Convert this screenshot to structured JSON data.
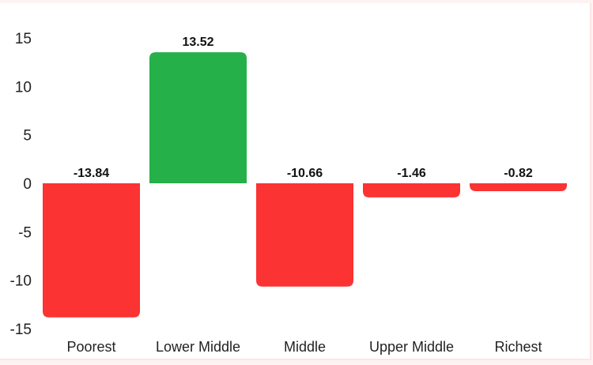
{
  "chart_data": {
    "type": "bar",
    "categories": [
      "Poorest",
      "Lower Middle",
      "Middle",
      "Upper Middle",
      "Richest"
    ],
    "values": [
      -13.84,
      13.52,
      -10.66,
      -1.46,
      -0.82
    ],
    "value_labels": [
      "-13.84",
      "13.52",
      "-10.66",
      "-1.46",
      "-0.82"
    ],
    "y_ticks": [
      "15",
      "10",
      "5",
      "0",
      "-5",
      "-10",
      "-15"
    ],
    "ylim": [
      -15,
      15
    ],
    "grid": false,
    "legend": "none",
    "colors": {
      "positive": "#25b04a",
      "negative": "#fb3333"
    }
  }
}
